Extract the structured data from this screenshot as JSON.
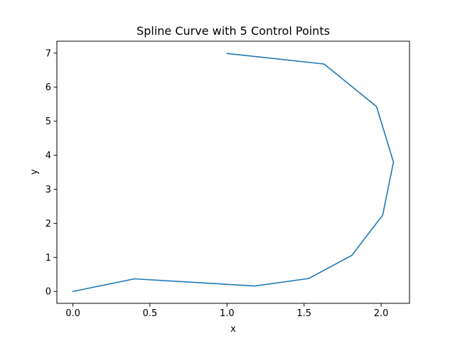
{
  "chart_data": {
    "type": "line",
    "title": "Spline Curve with 5 Control Points",
    "xlabel": "x",
    "ylabel": "y",
    "xlim": [
      -0.104,
      2.184
    ],
    "ylim": [
      -0.35,
      7.35
    ],
    "x_ticks": [
      0.0,
      0.5,
      1.0,
      1.5,
      2.0
    ],
    "x_tick_labels": [
      "0.0",
      "0.5",
      "1.0",
      "1.5",
      "2.0"
    ],
    "y_ticks": [
      0,
      1,
      2,
      3,
      4,
      5,
      6,
      7
    ],
    "y_tick_labels": [
      "0",
      "1",
      "2",
      "3",
      "4",
      "5",
      "6",
      "7"
    ],
    "grid": false,
    "series": [
      {
        "color": "#1f77b4",
        "x": [
          0.0,
          0.4,
          1.18,
          1.53,
          1.81,
          2.01,
          2.08,
          1.97,
          1.63,
          1.0
        ],
        "y": [
          0.0,
          0.37,
          0.16,
          0.38,
          1.06,
          2.24,
          3.8,
          5.43,
          6.68,
          6.99
        ]
      }
    ]
  }
}
